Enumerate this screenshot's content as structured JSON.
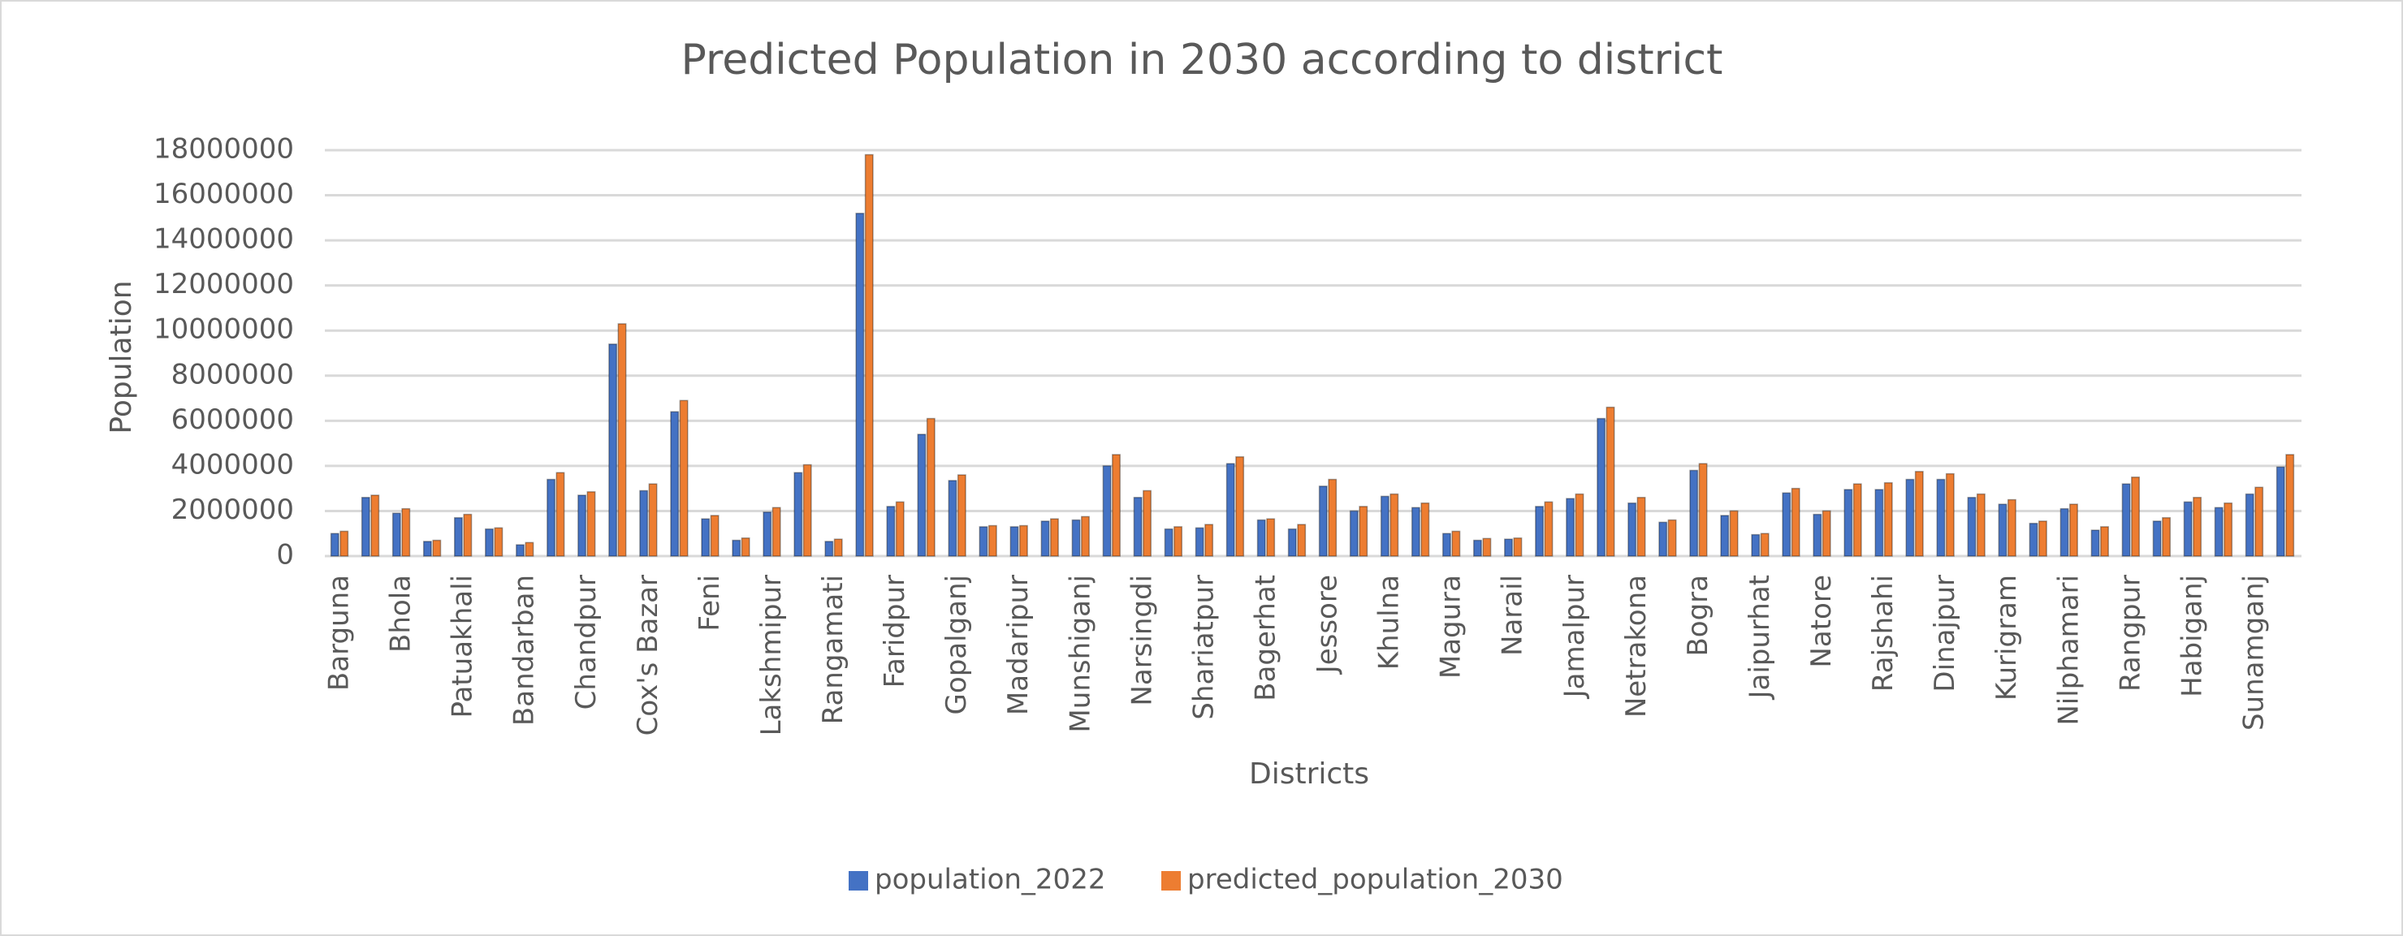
{
  "chart_data": {
    "type": "bar",
    "title": "Predicted Population in 2030 according to district",
    "x_label": "Districts",
    "y_label": "Population",
    "categories": [
      "Barguna",
      null,
      "Bhola",
      null,
      "Patuakhali",
      null,
      "Bandarban",
      null,
      "Chandpur",
      null,
      "Cox's Bazar",
      null,
      "Feni",
      null,
      "Lakshmipur",
      null,
      "Rangamati",
      null,
      "Faridpur",
      null,
      "Gopalganj",
      null,
      "Madaripur",
      null,
      "Munshiganj",
      null,
      "Narsingdi",
      null,
      "Shariatpur",
      null,
      "Bagerhat",
      null,
      "Jessore",
      null,
      "Khulna",
      null,
      "Magura",
      null,
      "Narail",
      null,
      "Jamalpur",
      null,
      "Netrakona",
      null,
      "Bogra",
      null,
      "Jaipurhat",
      null,
      "Natore",
      null,
      "Rajshahi",
      null,
      "Dinajpur",
      null,
      "Kurigram",
      null,
      "Nilphamari",
      null,
      "Rangpur",
      null,
      "Habiganj",
      null,
      "Sunamganj",
      null
    ],
    "series": [
      {
        "name": "population_2022",
        "color": "#4472c4",
        "values": [
          1000000,
          2600000,
          1900000,
          650000,
          1700000,
          1200000,
          500000,
          3400000,
          2700000,
          9400000,
          2900000,
          6400000,
          1650000,
          700000,
          1950000,
          3700000,
          650000,
          15200000,
          2200000,
          5400000,
          3350000,
          1300000,
          1300000,
          1550000,
          1600000,
          4000000,
          2600000,
          1200000,
          1250000,
          4100000,
          1600000,
          1200000,
          3100000,
          2000000,
          2650000,
          2150000,
          1000000,
          700000,
          750000,
          2200000,
          2550000,
          6100000,
          2350000,
          1500000,
          3800000,
          1800000,
          950000,
          2800000,
          1850000,
          2950000,
          2950000,
          3400000,
          3400000,
          2600000,
          2300000,
          1450000,
          2100000,
          1150000,
          3200000,
          1550000,
          2400000,
          2150000,
          2750000,
          3950000
        ]
      },
      {
        "name": "predicted_population_2030",
        "color": "#ed7d31",
        "values": [
          1100000,
          2700000,
          2100000,
          700000,
          1850000,
          1250000,
          600000,
          3700000,
          2850000,
          10300000,
          3200000,
          6900000,
          1800000,
          800000,
          2150000,
          4050000,
          750000,
          17800000,
          2400000,
          6100000,
          3600000,
          1350000,
          1350000,
          1650000,
          1750000,
          4500000,
          2900000,
          1300000,
          1400000,
          4400000,
          1650000,
          1400000,
          3400000,
          2200000,
          2750000,
          2350000,
          1100000,
          780000,
          800000,
          2400000,
          2750000,
          6600000,
          2600000,
          1600000,
          4100000,
          2000000,
          1000000,
          3000000,
          2000000,
          3200000,
          3250000,
          3750000,
          3650000,
          2750000,
          2500000,
          1550000,
          2300000,
          1300000,
          3500000,
          1700000,
          2600000,
          2350000,
          3050000,
          4500000
        ]
      }
    ],
    "ylim": [
      0,
      18000000
    ],
    "yticks": [
      0,
      2000000,
      4000000,
      6000000,
      8000000,
      10000000,
      12000000,
      14000000,
      16000000,
      18000000
    ],
    "grid": true,
    "legend": "bottom"
  }
}
